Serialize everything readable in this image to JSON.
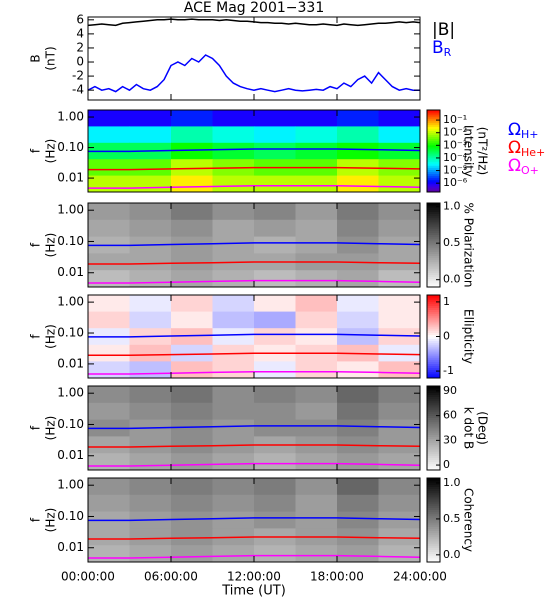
{
  "chart_data": [
    {
      "type": "line",
      "title": "ACE Mag 2001−331",
      "ylabel": [
        "B",
        "(nT)"
      ],
      "xlim": [
        0,
        24
      ],
      "ylim": [
        -5.4,
        6.4
      ],
      "yticks": [
        -4,
        -2,
        0,
        2,
        4,
        6
      ],
      "x": [
        0,
        0.5,
        1,
        1.5,
        2,
        2.5,
        3,
        3.5,
        4,
        4.5,
        5,
        5.5,
        6,
        6.5,
        7,
        7.5,
        8,
        8.5,
        9,
        9.5,
        10,
        10.5,
        11,
        11.5,
        12,
        12.5,
        13,
        13.5,
        14,
        14.5,
        15,
        15.5,
        16,
        16.5,
        17,
        17.5,
        18,
        18.5,
        19,
        19.5,
        20,
        20.5,
        21,
        21.5,
        22,
        22.5,
        23,
        23.5,
        24
      ],
      "series": [
        {
          "name": "|B|",
          "color": "#000000",
          "values": [
            5.2,
            5.3,
            5.4,
            5.3,
            5.2,
            5.5,
            5.6,
            5.7,
            5.8,
            5.9,
            6,
            6,
            6.1,
            6,
            6,
            6.1,
            6,
            6,
            6,
            5.9,
            6,
            5.9,
            5.8,
            5.8,
            5.7,
            5.6,
            5.6,
            5.5,
            5.5,
            5.4,
            5.5,
            5.4,
            5.3,
            5.3,
            5.4,
            5.3,
            5.2,
            5.4,
            5.3,
            5.2,
            5.3,
            5.4,
            5.5,
            5.5,
            5.6,
            5.7,
            5.6,
            5.7,
            5.6
          ]
        },
        {
          "name": "B",
          "subscript": "R",
          "color": "#0000ff",
          "values": [
            -4,
            -3.5,
            -4,
            -3.8,
            -4.2,
            -3.5,
            -4,
            -3.2,
            -3.8,
            -4,
            -3.5,
            -2.5,
            -0.5,
            0,
            -0.5,
            0.5,
            0,
            1,
            0.5,
            -0.5,
            -2,
            -3,
            -3.5,
            -3.8,
            -4,
            -3.8,
            -4,
            -4.2,
            -4,
            -3.8,
            -4,
            -4.1,
            -4,
            -3.9,
            -4,
            -3.5,
            -3.8,
            -3,
            -3.5,
            -2.5,
            -2,
            -3,
            -1.5,
            -2.5,
            -3.5,
            -4,
            -3.8,
            -4,
            -4
          ]
        }
      ]
    },
    {
      "type": "heatmap",
      "ylabel": [
        "f",
        "(Hz)"
      ],
      "log_y": true,
      "xlim": [
        0,
        24
      ],
      "ylim": [
        0.0035,
        1.7
      ],
      "yticks": [
        {
          "value": 1,
          "label": "1.00"
        },
        {
          "value": 0.1,
          "label": "0.10"
        },
        {
          "value": 0.01,
          "label": "0.01"
        }
      ],
      "z": [
        [
          1e-06,
          1e-06,
          2e-06,
          1e-06,
          1e-06,
          1e-06,
          2e-06,
          1e-06
        ],
        [
          3e-05,
          3e-05,
          0.0001,
          5e-05,
          3e-05,
          5e-05,
          0.0001,
          3e-05
        ],
        [
          0.0003,
          0.0003,
          0.001,
          0.0005,
          0.0003,
          0.0005,
          0.001,
          0.0005
        ],
        [
          0.003,
          0.003,
          0.01,
          0.005,
          0.003,
          0.003,
          0.01,
          0.005
        ],
        [
          0.01,
          0.01,
          0.03,
          0.01,
          0.01,
          0.01,
          0.03,
          0.01
        ]
      ],
      "colorbar": {
        "label": [
          "Intensity",
          "(nT²/Hz)"
        ],
        "colormap": "rainbow",
        "log": true,
        "lim": [
          2e-07,
          0.63
        ],
        "ticks": [
          {
            "value": 0.1,
            "label": "10⁻¹"
          },
          {
            "value": 0.01,
            "label": "10⁻²"
          },
          {
            "value": 0.001,
            "label": "10⁻³"
          },
          {
            "value": 0.0001,
            "label": "10⁻⁴"
          },
          {
            "value": 1e-05,
            "label": "10⁻⁵"
          },
          {
            "value": 1e-06,
            "label": "10⁻⁶"
          }
        ]
      },
      "x": [
        0,
        3,
        6,
        9,
        12,
        15,
        18,
        21,
        24
      ],
      "series": [
        {
          "name": "Ω",
          "subscript": "H+",
          "color": "#0000ff",
          "values": [
            0.075,
            0.075,
            0.08,
            0.085,
            0.09,
            0.09,
            0.09,
            0.085,
            0.08
          ]
        },
        {
          "name": "Ω",
          "subscript": "He+",
          "color": "#ff0000",
          "values": [
            0.019,
            0.019,
            0.02,
            0.021,
            0.022,
            0.022,
            0.022,
            0.021,
            0.02
          ]
        },
        {
          "name": "Ω",
          "subscript": "O+",
          "color": "#ff00ff",
          "values": [
            0.0047,
            0.0047,
            0.005,
            0.0053,
            0.0056,
            0.0056,
            0.0056,
            0.0053,
            0.005
          ]
        }
      ]
    },
    {
      "type": "heatmap",
      "ylabel": [
        "f",
        "(Hz)"
      ],
      "log_y": true,
      "xlim": [
        0,
        24
      ],
      "ylim": [
        0.0035,
        1.7
      ],
      "yticks": [
        {
          "value": 1,
          "label": "1.00"
        },
        {
          "value": 0.1,
          "label": "0.10"
        },
        {
          "value": 0.01,
          "label": "0.01"
        }
      ],
      "z": [
        [
          0.35,
          0.4,
          0.5,
          0.4,
          0.45,
          0.35,
          0.5,
          0.4
        ],
        [
          0.3,
          0.35,
          0.4,
          0.3,
          0.35,
          0.3,
          0.45,
          0.35
        ],
        [
          0.25,
          0.3,
          0.35,
          0.3,
          0.25,
          0.3,
          0.4,
          0.3
        ],
        [
          0.3,
          0.3,
          0.35,
          0.3,
          0.3,
          0.35,
          0.35,
          0.3
        ],
        [
          0.2,
          0.25,
          0.3,
          0.25,
          0.2,
          0.25,
          0.3,
          0.2
        ]
      ],
      "colorbar": {
        "label": [
          "% Polarization"
        ],
        "colormap": "gray",
        "log": false,
        "lim": [
          -0.1,
          1.05
        ],
        "ticks": [
          {
            "value": 1,
            "label": "1.0"
          },
          {
            "value": 0.5,
            "label": "0.5"
          },
          {
            "value": 0,
            "label": "0.0"
          }
        ]
      },
      "x": [
        0,
        3,
        6,
        9,
        12,
        15,
        18,
        21,
        24
      ],
      "series": [
        {
          "color": "#0000ff",
          "values": [
            0.075,
            0.075,
            0.08,
            0.085,
            0.09,
            0.09,
            0.09,
            0.085,
            0.08
          ]
        },
        {
          "color": "#ff0000",
          "values": [
            0.019,
            0.019,
            0.02,
            0.021,
            0.022,
            0.022,
            0.022,
            0.021,
            0.02
          ]
        },
        {
          "color": "#ff00ff",
          "values": [
            0.0047,
            0.0047,
            0.005,
            0.0053,
            0.0056,
            0.0056,
            0.0056,
            0.0053,
            0.005
          ]
        }
      ]
    },
    {
      "type": "heatmap",
      "ylabel": [
        "f",
        "(Hz)"
      ],
      "log_y": true,
      "xlim": [
        0,
        24
      ],
      "ylim": [
        0.0035,
        1.7
      ],
      "yticks": [
        {
          "value": 1,
          "label": "1.00"
        },
        {
          "value": 0.1,
          "label": "0.10"
        },
        {
          "value": 0.01,
          "label": "0.01"
        }
      ],
      "z": [
        [
          0.1,
          -0.1,
          0.2,
          -0.2,
          0.1,
          0.3,
          -0.1,
          0.1
        ],
        [
          0.2,
          -0.2,
          0.1,
          -0.3,
          -0.4,
          0.2,
          -0.2,
          0.1
        ],
        [
          -0.1,
          0.2,
          0.3,
          -0.1,
          0.2,
          0.1,
          -0.3,
          0.2
        ],
        [
          0.1,
          0.3,
          -0.2,
          0.2,
          0.1,
          0.2,
          0.3,
          -0.1
        ],
        [
          -0.2,
          -0.3,
          0.3,
          0.2,
          -0.1,
          0.2,
          0.1,
          0.3
        ]
      ],
      "colorbar": {
        "label": [
          "Ellipticity"
        ],
        "colormap": "bwr",
        "log": false,
        "lim": [
          -1.2,
          1.2
        ],
        "ticks": [
          1,
          0,
          -1
        ]
      },
      "x": [
        0,
        3,
        6,
        9,
        12,
        15,
        18,
        21,
        24
      ],
      "series": [
        {
          "color": "#0000ff",
          "values": [
            0.075,
            0.075,
            0.08,
            0.085,
            0.09,
            0.09,
            0.09,
            0.085,
            0.08
          ]
        },
        {
          "color": "#ff0000",
          "values": [
            0.019,
            0.019,
            0.02,
            0.021,
            0.022,
            0.022,
            0.022,
            0.021,
            0.02
          ]
        },
        {
          "color": "#ff00ff",
          "values": [
            0.0047,
            0.0047,
            0.005,
            0.0053,
            0.0056,
            0.0056,
            0.0056,
            0.0053,
            0.005
          ]
        }
      ]
    },
    {
      "type": "heatmap",
      "ylabel": [
        "f",
        "(Hz)"
      ],
      "log_y": true,
      "xlim": [
        0,
        24
      ],
      "ylim": [
        0.0035,
        1.7
      ],
      "yticks": [
        {
          "value": 1,
          "label": "1.00"
        },
        {
          "value": 0.1,
          "label": "0.10"
        },
        {
          "value": 0.01,
          "label": "0.01"
        }
      ],
      "z": [
        [
          40,
          45,
          50,
          40,
          45,
          40,
          55,
          45
        ],
        [
          35,
          40,
          45,
          40,
          40,
          35,
          50,
          40
        ],
        [
          40,
          35,
          40,
          35,
          40,
          40,
          45,
          35
        ],
        [
          30,
          35,
          40,
          35,
          30,
          35,
          40,
          35
        ],
        [
          25,
          30,
          35,
          30,
          25,
          30,
          35,
          30
        ]
      ],
      "colorbar": {
        "label": [
          "k dot B",
          "(Deg)"
        ],
        "colormap": "gray",
        "log": false,
        "lim": [
          -6,
          96
        ],
        "ticks": [
          90,
          60,
          30,
          0
        ]
      },
      "x": [
        0,
        3,
        6,
        9,
        12,
        15,
        18,
        21,
        24
      ],
      "series": [
        {
          "color": "#0000ff",
          "values": [
            0.075,
            0.075,
            0.08,
            0.085,
            0.09,
            0.09,
            0.09,
            0.085,
            0.08
          ]
        },
        {
          "color": "#ff0000",
          "values": [
            0.019,
            0.019,
            0.02,
            0.021,
            0.022,
            0.022,
            0.022,
            0.021,
            0.02
          ]
        },
        {
          "color": "#ff00ff",
          "values": [
            0.0047,
            0.0047,
            0.005,
            0.0053,
            0.0056,
            0.0056,
            0.0056,
            0.0053,
            0.005
          ]
        }
      ]
    },
    {
      "type": "heatmap",
      "ylabel": [
        "f",
        "(Hz)"
      ],
      "log_y": true,
      "xlim": [
        0,
        24
      ],
      "ylim": [
        0.0035,
        1.7
      ],
      "yticks": [
        {
          "value": 1,
          "label": "1.00"
        },
        {
          "value": 0.1,
          "label": "0.10"
        },
        {
          "value": 0.01,
          "label": "0.01"
        }
      ],
      "z": [
        [
          0.4,
          0.45,
          0.5,
          0.45,
          0.5,
          0.4,
          0.6,
          0.45
        ],
        [
          0.35,
          0.4,
          0.45,
          0.4,
          0.45,
          0.35,
          0.5,
          0.4
        ],
        [
          0.3,
          0.35,
          0.4,
          0.35,
          0.4,
          0.35,
          0.45,
          0.35
        ],
        [
          0.3,
          0.35,
          0.4,
          0.35,
          0.3,
          0.35,
          0.4,
          0.3
        ],
        [
          0.25,
          0.3,
          0.35,
          0.3,
          0.25,
          0.3,
          0.35,
          0.25
        ]
      ],
      "colorbar": {
        "label": [
          "Coherency"
        ],
        "colormap": "gray",
        "log": false,
        "lim": [
          -0.1,
          1.07
        ],
        "ticks": [
          {
            "value": 1,
            "label": "1.0"
          },
          {
            "value": 0.5,
            "label": "0.5"
          },
          {
            "value": 0,
            "label": "0.0"
          }
        ]
      },
      "x": [
        0,
        3,
        6,
        9,
        12,
        15,
        18,
        21,
        24
      ],
      "series": [
        {
          "color": "#0000ff",
          "values": [
            0.075,
            0.075,
            0.08,
            0.085,
            0.09,
            0.09,
            0.09,
            0.085,
            0.08
          ]
        },
        {
          "color": "#ff0000",
          "values": [
            0.019,
            0.019,
            0.02,
            0.021,
            0.022,
            0.022,
            0.022,
            0.021,
            0.02
          ]
        },
        {
          "color": "#ff00ff",
          "values": [
            0.0047,
            0.0047,
            0.005,
            0.0053,
            0.0056,
            0.0056,
            0.0056,
            0.0053,
            0.005
          ]
        }
      ],
      "xlabel": "Time (UT)",
      "xticks": [
        {
          "value": 0,
          "label": "00:00:00"
        },
        {
          "value": 6,
          "label": "06:00:00"
        },
        {
          "value": 12,
          "label": "12:00:00"
        },
        {
          "value": 18,
          "label": "18:00:00"
        },
        {
          "value": 24,
          "label": "24:00:00"
        }
      ]
    }
  ]
}
